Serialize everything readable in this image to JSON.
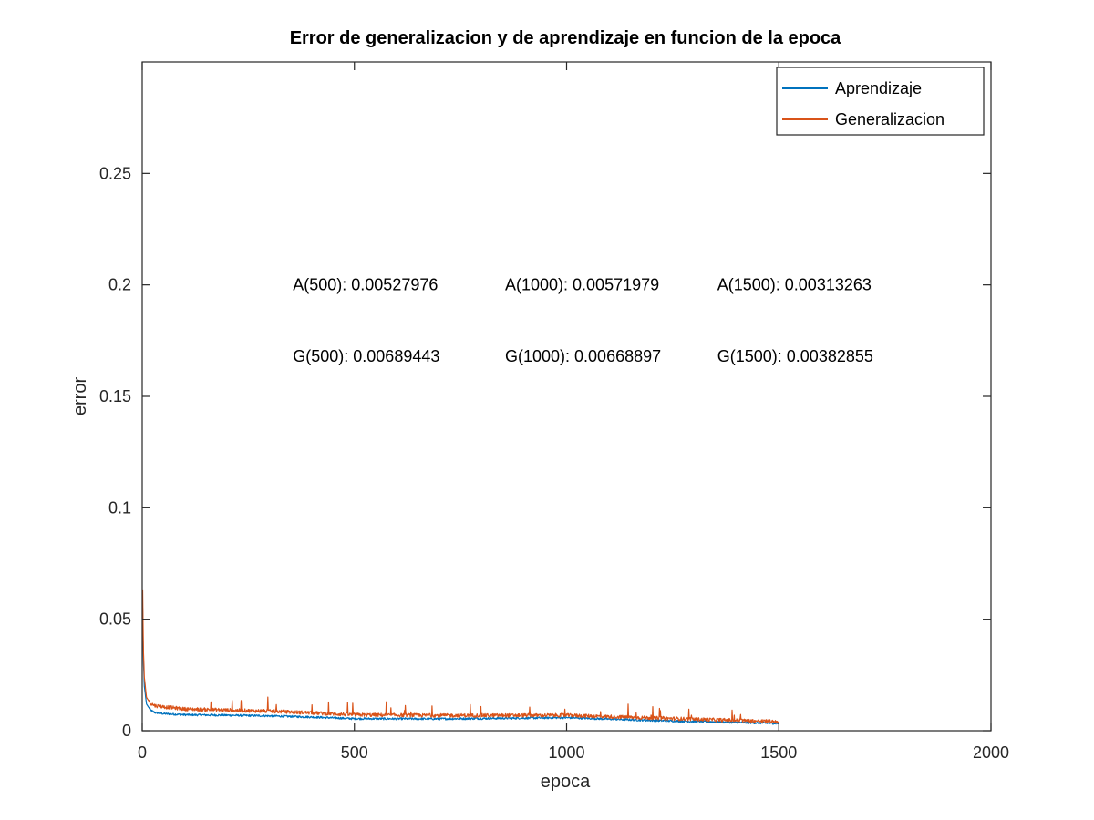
{
  "chart_data": {
    "type": "line",
    "title": "Error de generalizacion y de aprendizaje en funcion de la epoca",
    "xlabel": "epoca",
    "ylabel": "error",
    "xlim": [
      0,
      2000
    ],
    "ylim": [
      0,
      0.3
    ],
    "xticks": [
      0,
      500,
      1000,
      1500,
      2000
    ],
    "xtick_labels": [
      "0",
      "500",
      "1000",
      "1500",
      "2000"
    ],
    "yticks": [
      0,
      0.05,
      0.1,
      0.15,
      0.2,
      0.25
    ],
    "ytick_labels": [
      "0",
      "0.05",
      "0.1",
      "0.15",
      "0.2",
      "0.25"
    ],
    "grid": false,
    "legend_position": "top-right",
    "series": [
      {
        "name": "Aprendizaje",
        "color": "#0072BD",
        "x": [
          1,
          3,
          5,
          10,
          20,
          30,
          50,
          100,
          200,
          300,
          400,
          500,
          700,
          1000,
          1200,
          1500
        ],
        "y": [
          0.055,
          0.03,
          0.02,
          0.012,
          0.009,
          0.008,
          0.0075,
          0.007,
          0.0068,
          0.0065,
          0.006,
          0.00528,
          0.0052,
          0.00572,
          0.0045,
          0.00313
        ]
      },
      {
        "name": "Generalizacion",
        "color": "#D95319",
        "x": [
          1,
          3,
          5,
          10,
          20,
          30,
          50,
          100,
          200,
          300,
          400,
          500,
          700,
          1000,
          1200,
          1500
        ],
        "y": [
          0.063,
          0.035,
          0.024,
          0.015,
          0.012,
          0.011,
          0.0105,
          0.0095,
          0.009,
          0.0085,
          0.0078,
          0.00689,
          0.0066,
          0.00669,
          0.0055,
          0.00383
        ]
      }
    ],
    "annotations": [
      {
        "text": "A(500): 0.00527976",
        "x": 355,
        "y": 0.2
      },
      {
        "text": "A(1000): 0.00571979",
        "x": 855,
        "y": 0.2
      },
      {
        "text": "A(1500): 0.00313263",
        "x": 1355,
        "y": 0.2
      },
      {
        "text": "G(500): 0.00689443",
        "x": 355,
        "y": 0.168
      },
      {
        "text": "G(1000): 0.00668897",
        "x": 855,
        "y": 0.168
      },
      {
        "text": "G(1500): 0.00382855",
        "x": 1355,
        "y": 0.168
      }
    ]
  }
}
